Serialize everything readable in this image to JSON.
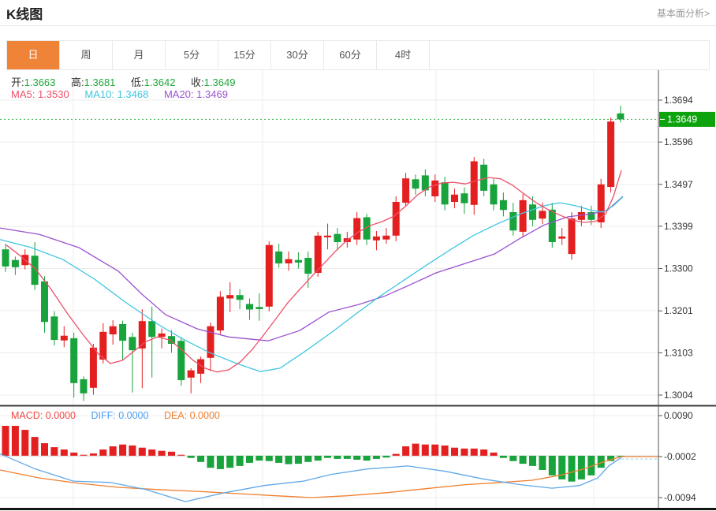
{
  "header": {
    "title": "K线图",
    "link": "基本面分析>"
  },
  "tabs": {
    "items": [
      "日",
      "周",
      "月",
      "5分",
      "15分",
      "30分",
      "60分",
      "4时"
    ],
    "active_index": 0
  },
  "legend": {
    "open_label": "开:",
    "open": "1.3663",
    "high_label": "高:",
    "high": "1.3681",
    "low_label": "低:",
    "low": "1.3642",
    "close_label": "收:",
    "close": "1.3649",
    "ma5_label": "MA5:",
    "ma5": "1.3530",
    "ma10_label": "MA10:",
    "ma10": "1.3468",
    "ma20_label": "MA20:",
    "ma20": "1.3469"
  },
  "macd_legend": {
    "macd_label": "MACD:",
    "macd": "0.0000",
    "diff_label": "DIFF:",
    "diff": "0.0000",
    "dea_label": "DEA:",
    "dea": "0.0000"
  },
  "colors": {
    "up_red": "#e41f1f",
    "down_green": "#18a33c",
    "tag_green": "#0ca30c",
    "dashed_current": "#3db54d",
    "ma5": "#ee4f68",
    "ma10": "#3fc6e0",
    "ma20": "#9b51d0",
    "diff_line": "#5fa8e8",
    "dea_line": "#f07f2e",
    "tab_active": "#ef8439",
    "grid": "#ececec",
    "axis": "#555555"
  },
  "chart_data": {
    "type": "candlestick_with_macd",
    "x_count": 64,
    "price_panel": {
      "ylim": [
        1.3004,
        1.3694
      ],
      "y_ticks": [
        "1.3694",
        "1.3596",
        "1.3497",
        "1.3399",
        "1.3300",
        "1.3201",
        "1.3103",
        "1.3004"
      ],
      "y_tick_values": [
        1.3694,
        1.3596,
        1.3497,
        1.3399,
        1.33,
        1.3201,
        1.3103,
        1.3004
      ],
      "current_price": "1.3649",
      "current_price_value": 1.3649,
      "candles": [
        [
          1.3345,
          1.3358,
          1.3292,
          1.3305
        ],
        [
          1.332,
          1.3328,
          1.3285,
          1.3303
        ],
        [
          1.3308,
          1.3345,
          1.3298,
          1.3332
        ],
        [
          1.333,
          1.3362,
          1.325,
          1.3262
        ],
        [
          1.327,
          1.3282,
          1.315,
          1.3175
        ],
        [
          1.3188,
          1.32,
          1.312,
          1.3133
        ],
        [
          1.3132,
          1.3165,
          1.3116,
          1.3143
        ],
        [
          1.3137,
          1.315,
          1.2998,
          1.3032
        ],
        [
          1.3041,
          1.3048,
          1.299,
          1.3008
        ],
        [
          1.3021,
          1.3124,
          1.3005,
          1.3115
        ],
        [
          1.3087,
          1.3172,
          1.3078,
          1.3152
        ],
        [
          1.3146,
          1.3179,
          1.3122,
          1.3165
        ],
        [
          1.317,
          1.3178,
          1.3087,
          1.3131
        ],
        [
          1.314,
          1.315,
          1.301,
          1.3109
        ],
        [
          1.3113,
          1.3205,
          1.302,
          1.3177
        ],
        [
          1.3177,
          1.3211,
          1.3045,
          1.314
        ],
        [
          1.314,
          1.316,
          1.3113,
          1.3148
        ],
        [
          1.3142,
          1.3156,
          1.3103,
          1.3124
        ],
        [
          1.3131,
          1.314,
          1.3026,
          1.3039
        ],
        [
          1.3045,
          1.3067,
          1.3008,
          1.3062
        ],
        [
          1.3054,
          1.3094,
          1.3032,
          1.3088
        ],
        [
          1.3091,
          1.3174,
          1.306,
          1.3165
        ],
        [
          1.3155,
          1.3247,
          1.3146,
          1.3234
        ],
        [
          1.323,
          1.3268,
          1.3198,
          1.3238
        ],
        [
          1.3238,
          1.3252,
          1.3205,
          1.3227
        ],
        [
          1.3217,
          1.323,
          1.318,
          1.3204
        ],
        [
          1.321,
          1.3242,
          1.3178,
          1.3205
        ],
        [
          1.3211,
          1.3364,
          1.32,
          1.3355
        ],
        [
          1.334,
          1.3358,
          1.3302,
          1.3312
        ],
        [
          1.3312,
          1.334,
          1.3295,
          1.3322
        ],
        [
          1.332,
          1.3338,
          1.33,
          1.3314
        ],
        [
          1.3325,
          1.334,
          1.3255,
          1.3288
        ],
        [
          1.329,
          1.3386,
          1.3281,
          1.3377
        ],
        [
          1.3373,
          1.3405,
          1.3345,
          1.3377
        ],
        [
          1.3381,
          1.3395,
          1.3343,
          1.3362
        ],
        [
          1.3362,
          1.3386,
          1.3349,
          1.3371
        ],
        [
          1.3368,
          1.3432,
          1.3355,
          1.3418
        ],
        [
          1.342,
          1.3428,
          1.3355,
          1.3368
        ],
        [
          1.3366,
          1.3388,
          1.3343,
          1.3375
        ],
        [
          1.3368,
          1.3395,
          1.3358,
          1.3377
        ],
        [
          1.3377,
          1.3469,
          1.3364,
          1.3456
        ],
        [
          1.3454,
          1.3524,
          1.3445,
          1.3511
        ],
        [
          1.3509,
          1.352,
          1.3473,
          1.3487
        ],
        [
          1.3518,
          1.3532,
          1.3469,
          1.3483
        ],
        [
          1.3469,
          1.352,
          1.3456,
          1.3506
        ],
        [
          1.3502,
          1.3515,
          1.3436,
          1.345
        ],
        [
          1.3456,
          1.3487,
          1.3441,
          1.3473
        ],
        [
          1.3476,
          1.349,
          1.3428,
          1.3453
        ],
        [
          1.3449,
          1.3561,
          1.3426,
          1.3551
        ],
        [
          1.3543,
          1.3557,
          1.3469,
          1.3482
        ],
        [
          1.3497,
          1.351,
          1.3436,
          1.345
        ],
        [
          1.346,
          1.3478,
          1.3422,
          1.3437
        ],
        [
          1.3432,
          1.3454,
          1.3377,
          1.3389
        ],
        [
          1.3386,
          1.3474,
          1.3373,
          1.346
        ],
        [
          1.345,
          1.3469,
          1.3399,
          1.3414
        ],
        [
          1.3417,
          1.3454,
          1.3404,
          1.3435
        ],
        [
          1.3438,
          1.3454,
          1.3349,
          1.3362
        ],
        [
          1.337,
          1.3395,
          1.3355,
          1.3375
        ],
        [
          1.3334,
          1.3432,
          1.3321,
          1.3417
        ],
        [
          1.3414,
          1.3447,
          1.3399,
          1.3432
        ],
        [
          1.3432,
          1.3447,
          1.3402,
          1.3414
        ],
        [
          1.3408,
          1.351,
          1.3395,
          1.3497
        ],
        [
          1.3491,
          1.3653,
          1.3478,
          1.3644
        ],
        [
          1.3663,
          1.3681,
          1.3642,
          1.3649
        ]
      ],
      "ma5": [
        [
          8,
          1.3355
        ],
        [
          25,
          1.3331
        ],
        [
          45,
          1.3299
        ],
        [
          65,
          1.3251
        ],
        [
          85,
          1.3196
        ],
        [
          105,
          1.3146
        ],
        [
          125,
          1.31
        ],
        [
          140,
          1.3078
        ],
        [
          155,
          1.3085
        ],
        [
          170,
          1.3107
        ],
        [
          185,
          1.3129
        ],
        [
          200,
          1.314
        ],
        [
          215,
          1.3133
        ],
        [
          230,
          1.3111
        ],
        [
          245,
          1.3085
        ],
        [
          260,
          1.3067
        ],
        [
          275,
          1.3058
        ],
        [
          290,
          1.3063
        ],
        [
          305,
          1.3082
        ],
        [
          320,
          1.3111
        ],
        [
          335,
          1.3146
        ],
        [
          350,
          1.3183
        ],
        [
          365,
          1.322
        ],
        [
          380,
          1.3251
        ],
        [
          395,
          1.3281
        ],
        [
          410,
          1.331
        ],
        [
          425,
          1.334
        ],
        [
          440,
          1.3366
        ],
        [
          455,
          1.3386
        ],
        [
          470,
          1.3401
        ],
        [
          485,
          1.341
        ],
        [
          500,
          1.3423
        ],
        [
          515,
          1.3447
        ],
        [
          530,
          1.3473
        ],
        [
          545,
          1.3491
        ],
        [
          560,
          1.35
        ],
        [
          575,
          1.3502
        ],
        [
          590,
          1.3498
        ],
        [
          605,
          1.3506
        ],
        [
          620,
          1.3513
        ],
        [
          635,
          1.351
        ],
        [
          650,
          1.3495
        ],
        [
          665,
          1.3474
        ],
        [
          680,
          1.3454
        ],
        [
          695,
          1.3438
        ],
        [
          710,
          1.3425
        ],
        [
          725,
          1.3414
        ],
        [
          740,
          1.3408
        ],
        [
          755,
          1.341
        ],
        [
          768,
          1.3428
        ],
        [
          778,
          1.3469
        ],
        [
          788,
          1.353
        ]
      ],
      "ma10": [
        [
          0,
          1.3368
        ],
        [
          40,
          1.3349
        ],
        [
          80,
          1.3321
        ],
        [
          120,
          1.3275
        ],
        [
          160,
          1.322
        ],
        [
          200,
          1.317
        ],
        [
          230,
          1.3137
        ],
        [
          265,
          1.3104
        ],
        [
          300,
          1.3078
        ],
        [
          330,
          1.3059
        ],
        [
          355,
          1.3067
        ],
        [
          385,
          1.3104
        ],
        [
          420,
          1.315
        ],
        [
          450,
          1.3192
        ],
        [
          480,
          1.3233
        ],
        [
          510,
          1.327
        ],
        [
          540,
          1.3307
        ],
        [
          570,
          1.3343
        ],
        [
          600,
          1.3377
        ],
        [
          630,
          1.3404
        ],
        [
          660,
          1.3428
        ],
        [
          690,
          1.3447
        ],
        [
          710,
          1.3454
        ],
        [
          730,
          1.3447
        ],
        [
          750,
          1.3436
        ],
        [
          765,
          1.3432
        ],
        [
          778,
          1.3447
        ],
        [
          790,
          1.3468
        ]
      ],
      "ma20": [
        [
          0,
          1.3395
        ],
        [
          50,
          1.338
        ],
        [
          100,
          1.3349
        ],
        [
          150,
          1.3294
        ],
        [
          180,
          1.324
        ],
        [
          210,
          1.3192
        ],
        [
          250,
          1.3159
        ],
        [
          290,
          1.314
        ],
        [
          340,
          1.3131
        ],
        [
          380,
          1.3155
        ],
        [
          417,
          1.3198
        ],
        [
          455,
          1.3216
        ],
        [
          487,
          1.3235
        ],
        [
          520,
          1.3262
        ],
        [
          553,
          1.329
        ],
        [
          590,
          1.3312
        ],
        [
          627,
          1.3334
        ],
        [
          660,
          1.3371
        ],
        [
          690,
          1.3402
        ],
        [
          720,
          1.3421
        ],
        [
          750,
          1.3428
        ],
        [
          770,
          1.3436
        ],
        [
          790,
          1.3469
        ]
      ]
    },
    "macd_panel": {
      "ylim": [
        -0.0094,
        0.009
      ],
      "y_ticks": [
        "0.0090",
        "-0.0002",
        "-0.0094"
      ],
      "y_tick_values": [
        0.009,
        -0.0002,
        -0.0094
      ],
      "histogram": [
        0.0067,
        0.0067,
        0.0058,
        0.0042,
        0.0028,
        0.0019,
        0.0014,
        0.0007,
        0.0002,
        0.0005,
        0.0014,
        0.0021,
        0.0025,
        0.0023,
        0.0018,
        0.0014,
        0.0011,
        0.0009,
        0.0002,
        -0.0005,
        -0.0014,
        -0.0027,
        -0.003,
        -0.0027,
        -0.0023,
        -0.0016,
        -0.0011,
        -0.0012,
        -0.0016,
        -0.0019,
        -0.0018,
        -0.0014,
        -0.0011,
        -0.0005,
        -0.0007,
        -0.0007,
        -0.0009,
        -0.0011,
        -0.0007,
        -0.0004,
        0.0004,
        0.0021,
        0.0027,
        0.0025,
        0.0025,
        0.0023,
        0.0018,
        0.0016,
        0.0016,
        0.0014,
        0.0007,
        -0.0005,
        -0.0012,
        -0.0018,
        -0.0023,
        -0.0032,
        -0.0044,
        -0.0053,
        -0.0058,
        -0.0053,
        -0.0044,
        -0.0027,
        -0.0012,
        -0.0002
      ],
      "diff": [
        [
          0,
          0.0004
        ],
        [
          45,
          -0.003
        ],
        [
          93,
          -0.0057
        ],
        [
          140,
          -0.006
        ],
        [
          185,
          -0.0076
        ],
        [
          235,
          -0.0103
        ],
        [
          285,
          -0.0083
        ],
        [
          335,
          -0.0067
        ],
        [
          385,
          -0.0057
        ],
        [
          420,
          -0.0042
        ],
        [
          465,
          -0.003
        ],
        [
          517,
          -0.0023
        ],
        [
          565,
          -0.0035
        ],
        [
          615,
          -0.0053
        ],
        [
          660,
          -0.0065
        ],
        [
          700,
          -0.0073
        ],
        [
          735,
          -0.0067
        ],
        [
          758,
          -0.005
        ],
        [
          772,
          -0.0023
        ],
        [
          788,
          -0.0004
        ]
      ],
      "dea": [
        [
          0,
          -0.0032
        ],
        [
          50,
          -0.005
        ],
        [
          100,
          -0.0062
        ],
        [
          150,
          -0.0071
        ],
        [
          200,
          -0.0076
        ],
        [
          250,
          -0.008
        ],
        [
          300,
          -0.0085
        ],
        [
          350,
          -0.009
        ],
        [
          395,
          -0.0094
        ],
        [
          440,
          -0.009
        ],
        [
          490,
          -0.0083
        ],
        [
          540,
          -0.0074
        ],
        [
          590,
          -0.0065
        ],
        [
          635,
          -0.006
        ],
        [
          675,
          -0.0055
        ],
        [
          710,
          -0.0044
        ],
        [
          740,
          -0.003
        ],
        [
          765,
          -0.0014
        ],
        [
          788,
          -0.0002
        ]
      ]
    }
  }
}
